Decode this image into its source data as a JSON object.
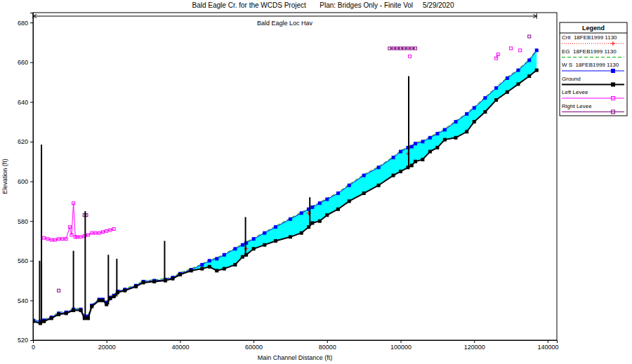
{
  "chart_data": {
    "type": "line",
    "title": "Bald Eagle Cr. for the WCDS Project       Plan: Bridges Only - Finite Vol     5/29/2020",
    "x_label": "Main Channel Distance (ft)",
    "y_label": "Elevation (ft)",
    "legend": "right",
    "legend_title": "Legend",
    "xlim": [
      0,
      142500
    ],
    "xticks": [
      0,
      20000,
      40000,
      60000,
      80000,
      100000,
      120000,
      140000
    ],
    "ylim": [
      520,
      685
    ],
    "yticks": [
      520,
      540,
      560,
      580,
      600,
      620,
      640,
      660,
      680
    ],
    "reach": {
      "label": "Bald Eagle Loc Hav",
      "start": 0,
      "end": 137000
    },
    "x": [
      0,
      2000,
      3000,
      5000,
      7000,
      9000,
      11000,
      13000,
      14000,
      15000,
      16000,
      18000,
      19000,
      20000,
      21000,
      22000,
      23000,
      25000,
      28000,
      30000,
      33000,
      36000,
      38000,
      40000,
      43000,
      46000,
      48000,
      50000,
      52000,
      55000,
      57000,
      58000,
      60000,
      63000,
      66000,
      70000,
      73000,
      75000,
      76000,
      78000,
      80000,
      83000,
      86000,
      90000,
      94000,
      98000,
      100000,
      102000,
      103000,
      104000,
      106000,
      108000,
      110000,
      112000,
      115000,
      118000,
      120000,
      123000,
      126000,
      129000,
      132000,
      135000,
      137000
    ],
    "series": [
      {
        "name": "Crit  18FEB1999 1130",
        "color": "#ff0000",
        "line_style": "dotted",
        "marker": "cross",
        "values": [
          null,
          null,
          null,
          null,
          null,
          null,
          null,
          null,
          null,
          null,
          null,
          null,
          null,
          null,
          null,
          null,
          null,
          null,
          null,
          null,
          null,
          null,
          null,
          null,
          null,
          null,
          null,
          null,
          null,
          null,
          null,
          566,
          null,
          null,
          null,
          null,
          null,
          584,
          null,
          null,
          null,
          null,
          null,
          null,
          null,
          null,
          null,
          614,
          null,
          null,
          null,
          null,
          null,
          null,
          null,
          null,
          null,
          null,
          null,
          null,
          null,
          null,
          null
        ]
      },
      {
        "name": "EG  18FEB1999 1130",
        "color": "#00b000",
        "line_style": "dashed",
        "marker": "none",
        "values": [
          530.5,
          530,
          530.5,
          532,
          534,
          534.5,
          536,
          536,
          532.5,
          532.5,
          538,
          541,
          541,
          539.5,
          542,
          543,
          545,
          546,
          548,
          550,
          550.5,
          551,
          552,
          554,
          556,
          558.5,
          560.5,
          561.5,
          563.5,
          566.5,
          568.5,
          569.5,
          571.5,
          574.5,
          577.5,
          581.5,
          584.5,
          586.5,
          587.5,
          589.5,
          591.5,
          594.5,
          598.5,
          603.5,
          607.5,
          612.5,
          615.5,
          617.5,
          618,
          619.5,
          620.5,
          622.5,
          624.5,
          626.5,
          630.5,
          634.5,
          637.5,
          642.5,
          647.5,
          652.5,
          656.5,
          661.5,
          666.5
        ]
      },
      {
        "name": "W S  18FEB1999 1130",
        "color": "#0000ff",
        "line_style": "solid",
        "marker": "square",
        "values": [
          530,
          529.5,
          530,
          531.5,
          533.5,
          534,
          535.5,
          535.5,
          532,
          532,
          537.5,
          540.5,
          540.5,
          539,
          541.5,
          542.5,
          544.5,
          545.5,
          547.5,
          549.5,
          550,
          550.5,
          551.5,
          553.5,
          555.5,
          558,
          560,
          561,
          563,
          566,
          568,
          569,
          571,
          574,
          577,
          581,
          584,
          586,
          587,
          589,
          591,
          594,
          598,
          603,
          607,
          612,
          615,
          617,
          617.5,
          619,
          620,
          622,
          624,
          626,
          630,
          634,
          637,
          642,
          647,
          652,
          656,
          661,
          666
        ]
      },
      {
        "name": "Ground",
        "color": "#000000",
        "line_style": "solid",
        "marker": "square",
        "values": [
          529.5,
          528.5,
          529.5,
          531,
          533,
          533.5,
          535,
          535,
          531,
          531,
          537,
          540,
          540,
          538,
          541,
          542,
          544,
          545,
          547,
          549,
          549.5,
          550,
          551,
          553,
          555,
          556,
          557,
          555,
          556,
          558,
          562,
          563,
          566,
          568,
          570,
          572,
          574,
          577,
          579,
          580,
          583,
          586,
          590,
          594,
          598,
          603,
          605,
          607,
          608,
          610,
          611,
          615,
          617,
          621,
          622,
          625,
          630,
          635,
          641,
          645,
          649,
          653,
          656
        ]
      },
      {
        "name": "Left Levee",
        "color": "#ff00ff",
        "line_style": "solid",
        "marker": "square",
        "x": [
          3000,
          4000,
          5000,
          6000,
          7000,
          8000,
          9000,
          10000,
          10500,
          11000,
          11500,
          12000,
          13000,
          14000,
          15000,
          16000,
          17000,
          18000,
          19000,
          20000,
          21000,
          22000,
          60000,
          102500,
          110000,
          126000,
          126500,
          128000,
          130000,
          131000,
          132500
        ],
        "values": [
          571.5,
          571,
          570.5,
          570.5,
          571,
          571,
          571,
          577,
          573,
          589,
          572,
          572,
          572,
          572.5,
          573,
          574,
          574,
          574,
          574.5,
          575,
          575.5,
          576,
          null,
          663,
          null,
          662,
          664,
          null,
          667,
          null,
          666
        ]
      },
      {
        "name": "Right Levee",
        "color": "#800080",
        "line_style": "solid",
        "marker": "square",
        "x": [
          7000,
          10000,
          14000,
          14500,
          50000,
          97000,
          98000,
          99000,
          100000,
          101000,
          102000,
          103000,
          104000,
          120000,
          135000
        ],
        "values": [
          545,
          null,
          583,
          583,
          null,
          667,
          667,
          667,
          667,
          667,
          667,
          667,
          667,
          null,
          673
        ]
      }
    ],
    "bridges": {
      "x": [
        1800,
        2300,
        11000,
        14200,
        20500,
        22800,
        35800,
        57800,
        75300,
        102200
      ],
      "top": [
        560,
        618.5,
        565,
        585,
        563,
        561,
        570,
        582,
        592,
        653
      ],
      "bottom": [
        529,
        529,
        535,
        531,
        538,
        542,
        550,
        562,
        578,
        607
      ]
    }
  }
}
